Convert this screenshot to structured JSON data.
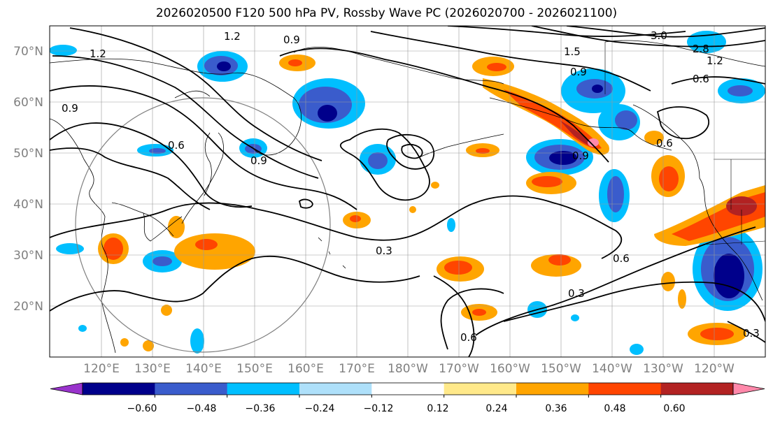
{
  "title": "2026020500 F120 500 hPa PV, Rossby Wave PC (2026020700 - 2026021100)",
  "map": {
    "lat_labels": [
      "70°N",
      "60°N",
      "50°N",
      "40°N",
      "30°N",
      "20°N"
    ],
    "lon_labels": [
      "120°E",
      "130°E",
      "140°E",
      "150°E",
      "160°E",
      "170°E",
      "180°W",
      "170°W",
      "160°W",
      "150°W",
      "140°W",
      "130°W",
      "120°W"
    ],
    "contour_labels": [
      "1.2",
      "0.9",
      "1.2",
      "0.9",
      "0.6",
      "0.9",
      "0.3",
      "0.6",
      "0.3",
      "0.6",
      "0.9",
      "1.5",
      "3.0",
      "2.8",
      "1.2",
      "0.6",
      "0.9",
      "0.6",
      "0.3"
    ]
  },
  "colorbar": {
    "ticks": [
      "−0.60",
      "−0.48",
      "−0.36",
      "−0.24",
      "−0.12",
      "0.12",
      "0.24",
      "0.36",
      "0.48",
      "0.60"
    ],
    "colors": [
      "#9933cc",
      "#00008b",
      "#3a5ccc",
      "#00bfff",
      "#aee0fa",
      "#ffffff",
      "#ffe98a",
      "#ffa500",
      "#ff4500",
      "#b22222",
      "#ff88aa"
    ]
  }
}
